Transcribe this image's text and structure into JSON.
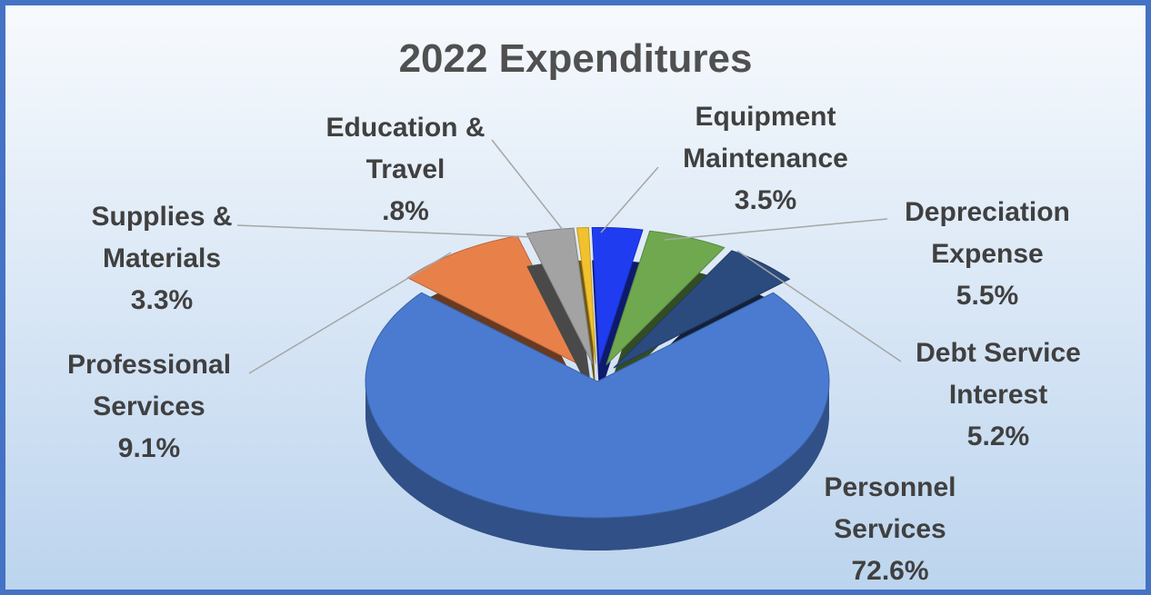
{
  "chart_data": {
    "type": "pie3d",
    "title": "2022 Expenditures",
    "categories": [
      "Education & Travel",
      "Equipment Maintenance",
      "Depreciation Expense",
      "Debt Service Interest",
      "Personnel Services",
      "Professional Services",
      "Supplies & Materials"
    ],
    "values": [
      0.8,
      3.5,
      5.5,
      5.2,
      72.6,
      9.1,
      3.3
    ],
    "value_labels": [
      ".8%",
      "3.5%",
      "5.5%",
      "5.2%",
      "72.6%",
      "9.1%",
      "3.3%"
    ],
    "colors": [
      "#f2c12e",
      "#1f3cf0",
      "#6fa84f",
      "#2b4a7e",
      "#4a7bd0",
      "#e8804a",
      "#a3a3a3"
    ]
  }
}
